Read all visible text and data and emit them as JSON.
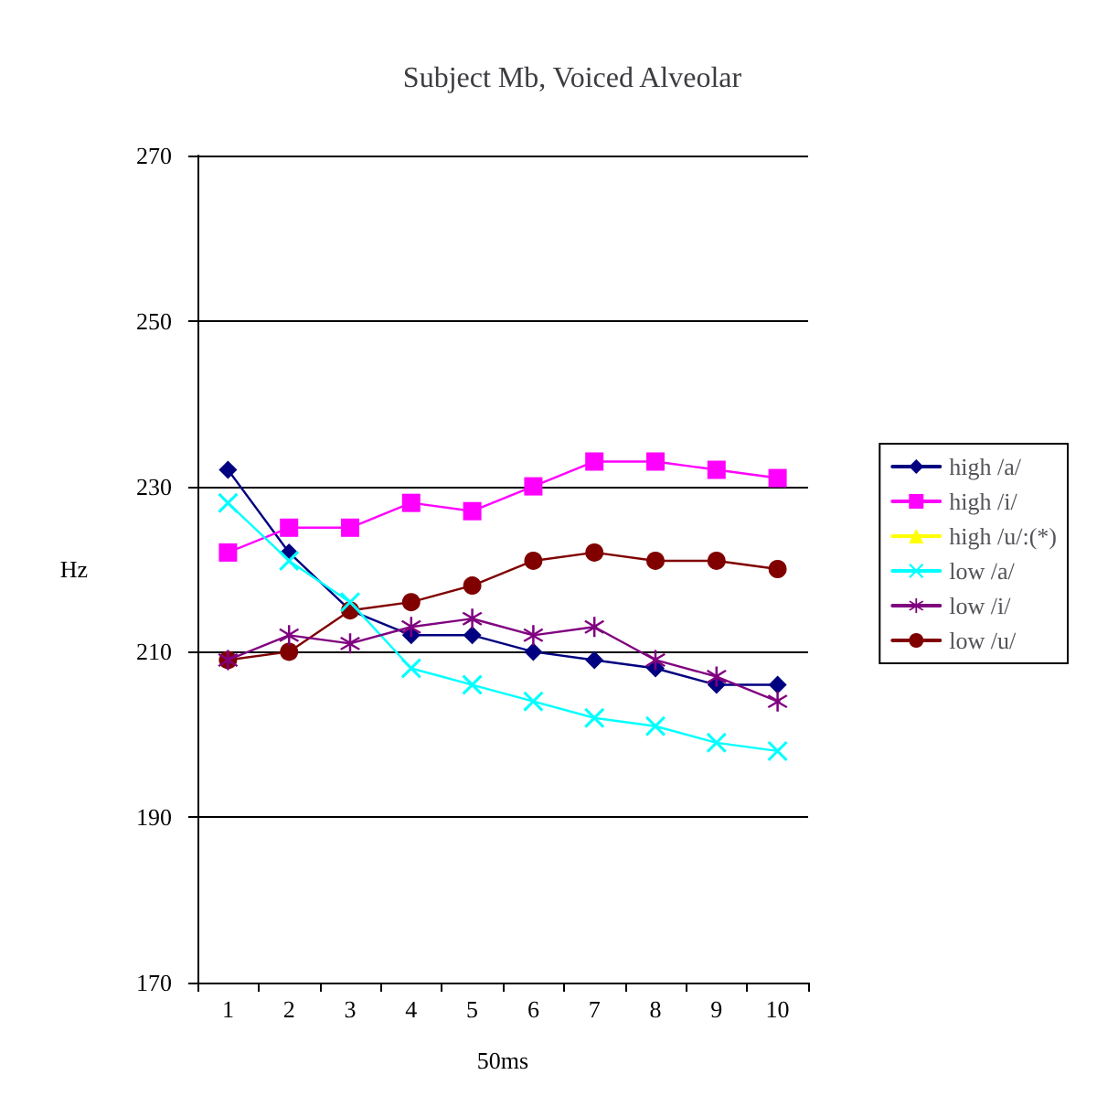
{
  "chart_data": {
    "type": "line",
    "title": "Subject Mb, Voiced Alveolar",
    "xlabel": "50ms",
    "ylabel": "Hz",
    "categories": [
      "1",
      "2",
      "3",
      "4",
      "5",
      "6",
      "7",
      "8",
      "9",
      "10"
    ],
    "ylim": [
      170,
      270
    ],
    "yticks": [
      170,
      190,
      210,
      230,
      250,
      270
    ],
    "grid": "y",
    "legend": "right",
    "line_style": "solid",
    "series": [
      {
        "name": "high /a/",
        "color": "#000080",
        "marker": "diamond",
        "values": [
          232,
          222,
          215,
          212,
          212,
          210,
          209,
          208,
          206,
          206
        ]
      },
      {
        "name": "high /i/",
        "color": "#ff00ff",
        "marker": "square",
        "values": [
          222,
          225,
          225,
          228,
          227,
          230,
          233,
          233,
          232,
          231
        ]
      },
      {
        "name": "high /u/:(*)",
        "color": "#ffff00",
        "marker": "triangle",
        "values": [
          null,
          null,
          null,
          null,
          null,
          null,
          null,
          null,
          null,
          null
        ]
      },
      {
        "name": "low /a/",
        "color": "#00ffff",
        "marker": "cross",
        "values": [
          228,
          221,
          216,
          208,
          206,
          204,
          202,
          201,
          199,
          198
        ]
      },
      {
        "name": "low /i/",
        "color": "#800080",
        "marker": "star",
        "values": [
          209,
          212,
          211,
          213,
          214,
          212,
          213,
          209,
          207,
          204
        ]
      },
      {
        "name": "low /u/",
        "color": "#800000",
        "marker": "circle",
        "values": [
          209,
          210,
          215,
          216,
          218,
          221,
          222,
          221,
          221,
          220
        ]
      }
    ]
  }
}
